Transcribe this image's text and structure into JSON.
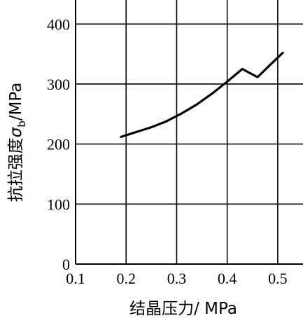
{
  "chart_data": {
    "type": "line",
    "x_ticks": [
      "0.1",
      "0.2",
      "0.3",
      "0.4",
      "0.5"
    ],
    "y_ticks": [
      "0",
      "100",
      "200",
      "300",
      "400"
    ],
    "xlim": [
      0.1,
      0.55
    ],
    "ylim": [
      0,
      440
    ],
    "grid": true,
    "xlabel": "结晶压力/ MPa",
    "ylabel_prefix": "抗拉强度",
    "ylabel_symbol": "σ",
    "ylabel_subscript": "b",
    "ylabel_suffix": "/MPa",
    "series": [
      {
        "x": [
          0.19,
          0.22,
          0.25,
          0.28,
          0.31,
          0.34,
          0.37,
          0.4,
          0.43,
          0.46,
          0.49,
          0.51
        ],
        "y": [
          212,
          220,
          228,
          238,
          251,
          266,
          284,
          304,
          325,
          311.5,
          336,
          352
        ]
      }
    ]
  }
}
